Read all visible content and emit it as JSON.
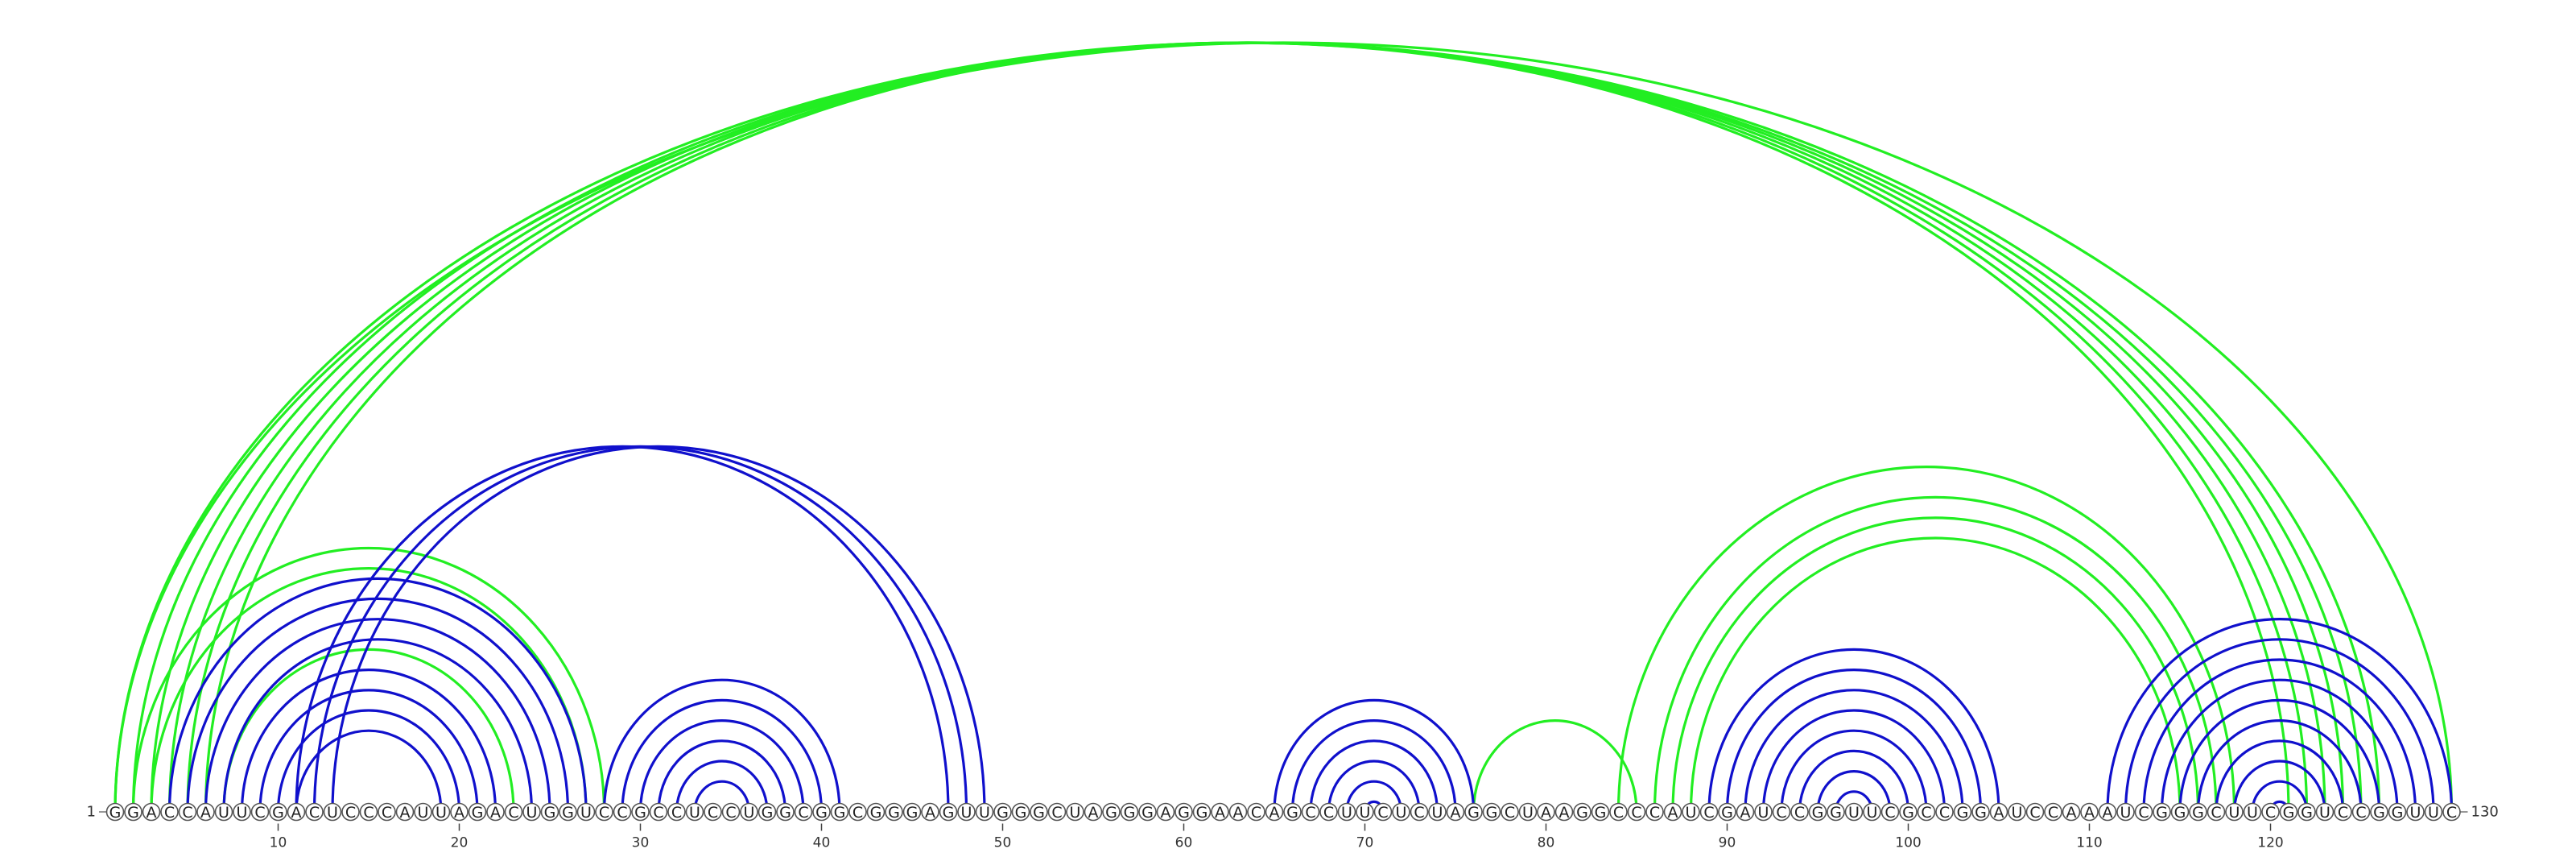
{
  "sequence": "GGACCAUUCGACUCCCAUUAGACUGGUCCGCCUCCUGGCGGCGGGAGUUGGGCUAGGGAGGAACAGCCUUCUCUAGGCUAAGGCCCAUCGAUCCGGUUCGCCGGAUCCAAAUCGGGCUUCGGUCCGGUUC",
  "start_label": "1",
  "end_label": "130",
  "ticks": [
    "10",
    "20",
    "30",
    "40",
    "50",
    "60",
    "70",
    "80",
    "90",
    "100",
    "110",
    "120"
  ],
  "colors": {
    "green": "#22ee22",
    "blue": "#1010cc",
    "backbone": "#777777"
  },
  "pairs": {
    "green": [
      [
        1,
        130
      ],
      [
        1,
        126
      ],
      [
        2,
        125
      ],
      [
        3,
        124
      ],
      [
        4,
        123
      ],
      [
        5,
        122
      ],
      [
        6,
        121
      ],
      [
        2,
        28
      ],
      [
        3,
        27
      ],
      [
        7,
        23
      ],
      [
        76,
        85
      ],
      [
        84,
        118
      ],
      [
        86,
        117
      ],
      [
        87,
        116
      ],
      [
        88,
        115
      ]
    ],
    "blue": [
      [
        4,
        27
      ],
      [
        5,
        26
      ],
      [
        6,
        25
      ],
      [
        7,
        24
      ],
      [
        8,
        22
      ],
      [
        9,
        21
      ],
      [
        10,
        20
      ],
      [
        11,
        19
      ],
      [
        11,
        47
      ],
      [
        12,
        48
      ],
      [
        13,
        49
      ],
      [
        28,
        41
      ],
      [
        29,
        40
      ],
      [
        30,
        39
      ],
      [
        31,
        38
      ],
      [
        32,
        37
      ],
      [
        33,
        36
      ],
      [
        65,
        76
      ],
      [
        66,
        75
      ],
      [
        67,
        74
      ],
      [
        68,
        73
      ],
      [
        69,
        72
      ],
      [
        70,
        71
      ],
      [
        89,
        105
      ],
      [
        90,
        104
      ],
      [
        91,
        103
      ],
      [
        92,
        102
      ],
      [
        93,
        101
      ],
      [
        94,
        100
      ],
      [
        95,
        99
      ],
      [
        96,
        98
      ],
      [
        111,
        130
      ],
      [
        112,
        129
      ],
      [
        113,
        128
      ],
      [
        114,
        127
      ],
      [
        115,
        126
      ],
      [
        116,
        125
      ],
      [
        117,
        124
      ],
      [
        118,
        123
      ],
      [
        119,
        122
      ],
      [
        120,
        121
      ]
    ]
  }
}
